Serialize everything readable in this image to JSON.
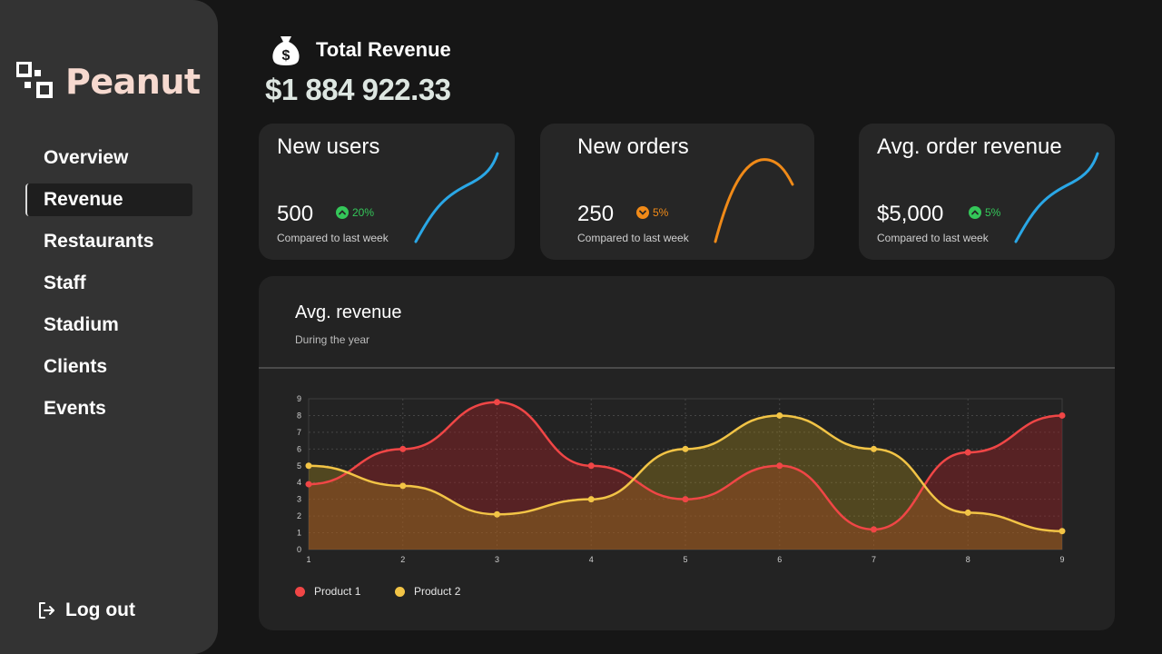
{
  "brand": {
    "name": "Peanut",
    "logo_icon": "qr-squares-icon"
  },
  "nav": {
    "items": [
      {
        "label": "Overview",
        "active": false
      },
      {
        "label": "Revenue",
        "active": true
      },
      {
        "label": "Restaurants",
        "active": false
      },
      {
        "label": "Staff",
        "active": false
      },
      {
        "label": "Stadium",
        "active": false
      },
      {
        "label": "Clients",
        "active": false
      },
      {
        "label": "Events",
        "active": false
      }
    ],
    "logout_label": "Log out"
  },
  "total": {
    "label": "Total Revenue",
    "value": "$1 884 922.33",
    "icon": "money-bag-icon"
  },
  "cards": [
    {
      "title": "New users",
      "value": "500",
      "change": "20%",
      "trend": "up",
      "sub": "Compared to last week",
      "color": "#2aa7e6"
    },
    {
      "title": "New orders",
      "value": "250",
      "change": "5%",
      "trend": "down",
      "sub": "Compared to last week",
      "color": "#f08a18"
    },
    {
      "title": "Avg. order revenue",
      "value": "$5,000",
      "change": "5%",
      "trend": "up",
      "sub": "Compared to last week",
      "color": "#2aa7e6"
    }
  ],
  "colors": {
    "up": "#34c759",
    "down": "#f08a18",
    "product1": "#f04646",
    "product2": "#f2c446"
  },
  "chart": {
    "title": "Avg. revenue",
    "subtitle": "During the year"
  },
  "chart_data": {
    "type": "area",
    "title": "Avg. revenue",
    "x": [
      1,
      2,
      3,
      4,
      5,
      6,
      7,
      8,
      9
    ],
    "ylim": [
      0,
      9
    ],
    "yticks": [
      0,
      1,
      2,
      3,
      4,
      5,
      6,
      7,
      8,
      9
    ],
    "series": [
      {
        "name": "Product 1",
        "values": [
          3.9,
          6,
          8.8,
          5,
          3,
          5,
          1.2,
          5.8,
          8
        ]
      },
      {
        "name": "Product 2",
        "values": [
          5,
          3.8,
          2.1,
          3,
          6,
          8,
          6,
          2.2,
          1.1
        ]
      }
    ],
    "legend": [
      "Product 1",
      "Product 2"
    ],
    "grid": true
  }
}
